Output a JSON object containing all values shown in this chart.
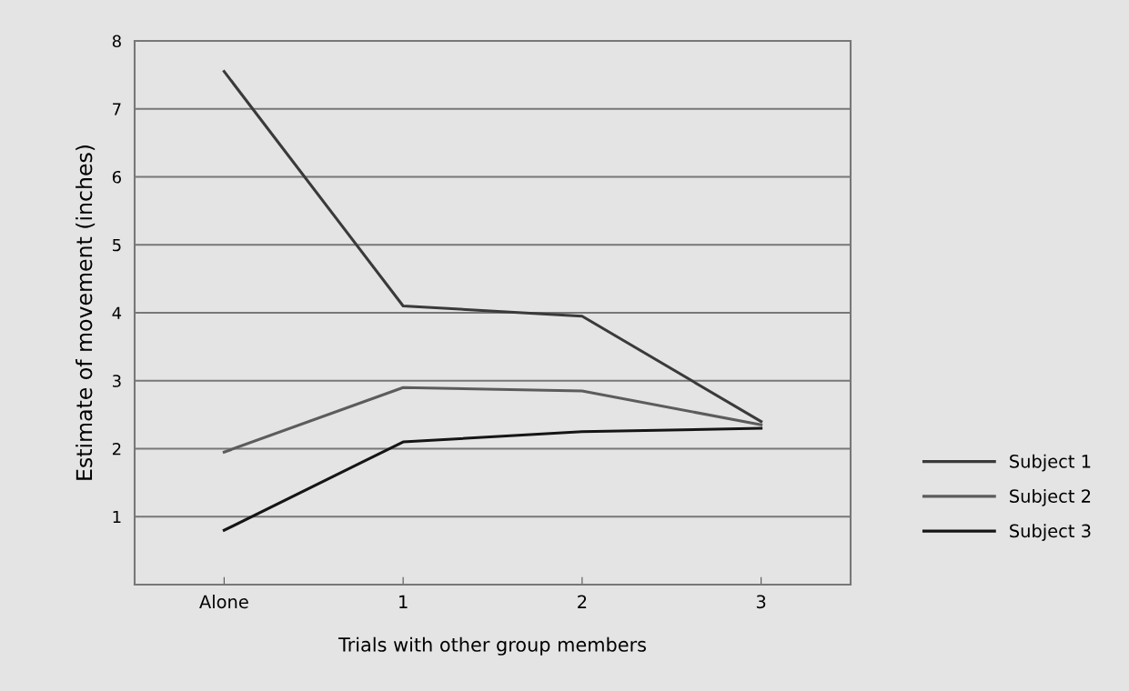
{
  "chart_data": {
    "type": "line",
    "xlabel": "Trials with other group members",
    "ylabel": "Estimate of movement (inches)",
    "categories": [
      "Alone",
      "1",
      "2",
      "3"
    ],
    "series": [
      {
        "name": "Subject 1",
        "color": "#3a3a3a",
        "values": [
          7.55,
          4.1,
          3.95,
          2.4
        ]
      },
      {
        "name": "Subject 2",
        "color": "#5c5c5c",
        "values": [
          1.95,
          2.9,
          2.85,
          2.35
        ]
      },
      {
        "name": "Subject 3",
        "color": "#151515",
        "values": [
          0.8,
          2.1,
          2.25,
          2.3
        ]
      }
    ],
    "ylim": [
      0,
      8
    ],
    "yticks": [
      1,
      2,
      3,
      4,
      5,
      6,
      7,
      8
    ],
    "grid": "y",
    "legend": "right",
    "marker": "none",
    "line_style": "solid"
  }
}
